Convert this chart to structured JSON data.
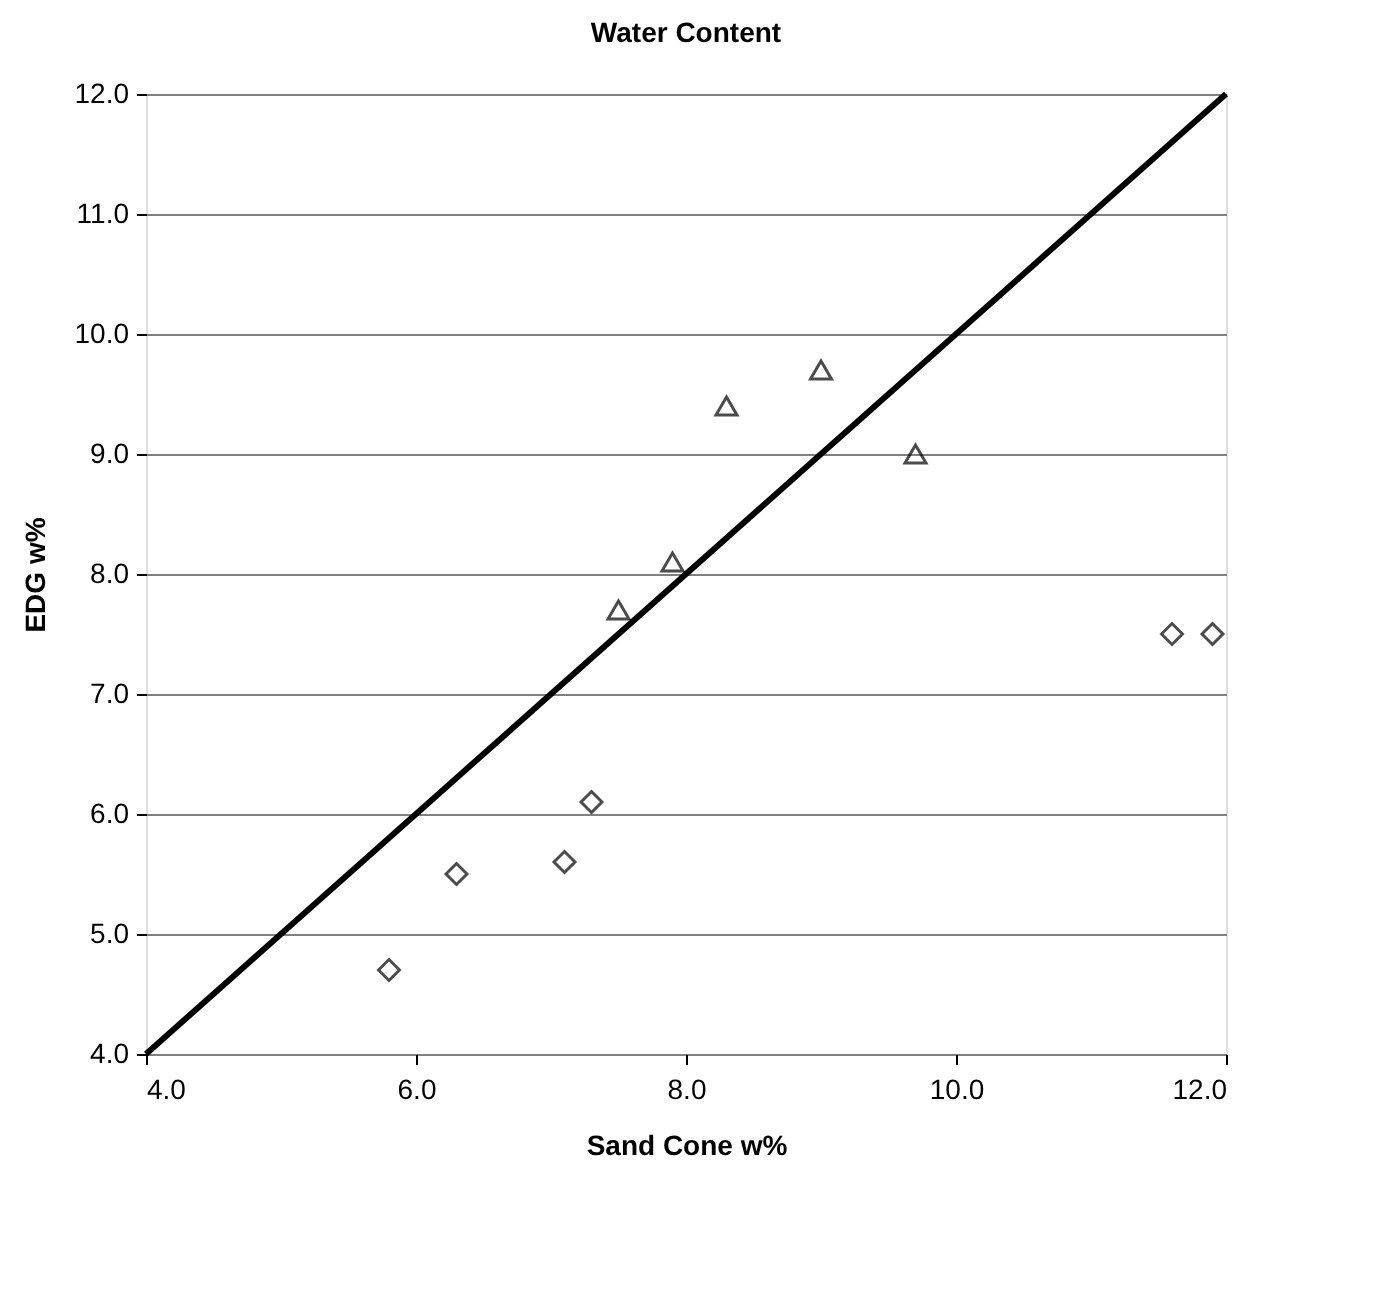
{
  "chart_data": {
    "type": "scatter",
    "title": "Water Content",
    "xlabel": "Sand Cone w%",
    "ylabel": "EDG w%",
    "xlim": [
      4,
      12
    ],
    "ylim": [
      4,
      12
    ],
    "xticks": [
      {
        "value": 4,
        "label": "4.0"
      },
      {
        "value": 6,
        "label": "6.0"
      },
      {
        "value": 8,
        "label": "8.0"
      },
      {
        "value": 10,
        "label": "10.0"
      },
      {
        "value": 12,
        "label": "12.0"
      }
    ],
    "yticks": [
      {
        "value": 4,
        "label": "4.0"
      },
      {
        "value": 5,
        "label": "5.0"
      },
      {
        "value": 6,
        "label": "6.0"
      },
      {
        "value": 7,
        "label": "7.0"
      },
      {
        "value": 8,
        "label": "8.0"
      },
      {
        "value": 9,
        "label": "9.0"
      },
      {
        "value": 10,
        "label": "10.0"
      },
      {
        "value": 11,
        "label": "11.0"
      },
      {
        "value": 12,
        "label": "12.0"
      }
    ],
    "grid": "y",
    "series": [
      {
        "type": "line",
        "color": "#000000",
        "marker": "none",
        "line_style": "solid",
        "x": [
          4,
          12
        ],
        "values": [
          4,
          12
        ]
      },
      {
        "color": "#000000",
        "marker": "diamond",
        "x": [
          5.8,
          6.3,
          7.1,
          7.3,
          11.6,
          11.9
        ],
        "values": [
          4.7,
          5.5,
          5.6,
          6.1,
          7.5,
          7.5
        ]
      },
      {
        "color": "#000000",
        "marker": "triangle",
        "x": [
          7.5,
          7.9,
          8.3,
          9.0,
          9.7
        ],
        "values": [
          7.7,
          8.1,
          9.4,
          9.7,
          9.0
        ]
      }
    ]
  }
}
